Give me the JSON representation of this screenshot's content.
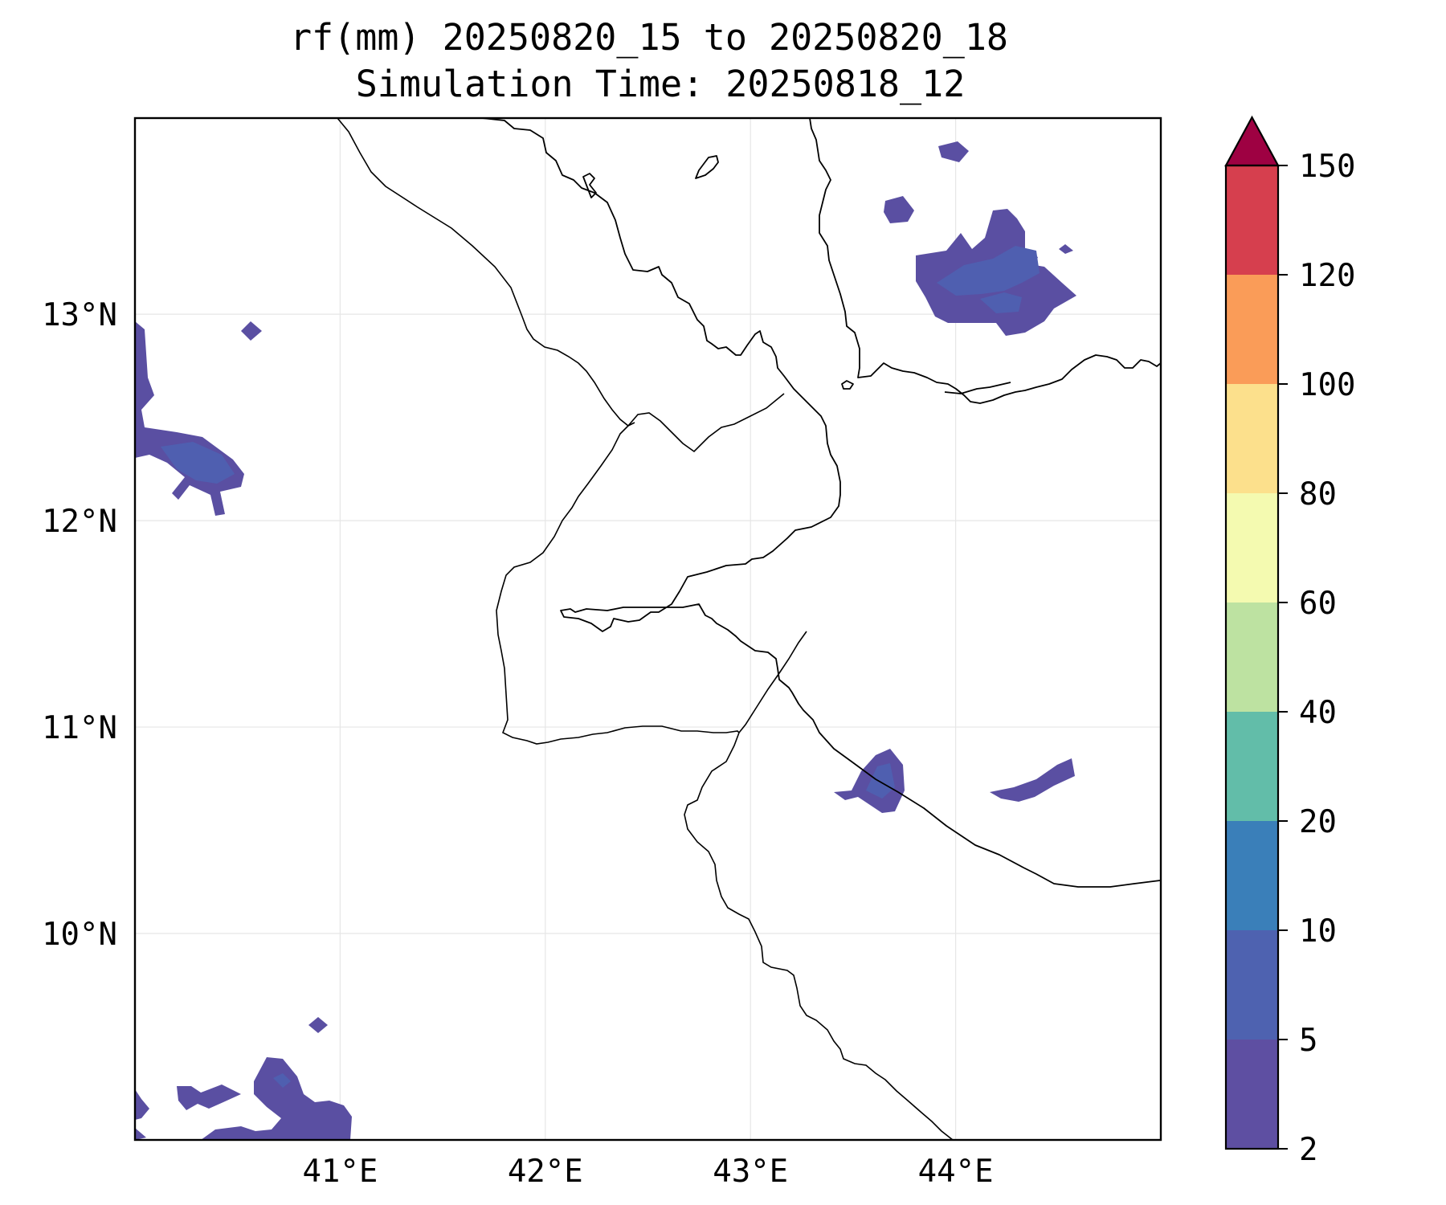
{
  "title": {
    "line1": "rf(mm) 20250820_15 to 20250820_18",
    "line2": "Simulation Time: 20250818_12"
  },
  "map": {
    "type": "filled-contour-map",
    "lon_range": [
      40.0,
      45.0
    ],
    "lat_range": [
      9.0,
      13.95
    ],
    "gridlines": true,
    "x_ticks": [
      {
        "value": 41,
        "label": "41°E"
      },
      {
        "value": 42,
        "label": "42°E"
      },
      {
        "value": 43,
        "label": "43°E"
      },
      {
        "value": 44,
        "label": "44°E"
      }
    ],
    "y_ticks": [
      {
        "value": 13,
        "label": "13°N"
      },
      {
        "value": 12,
        "label": "12°N"
      },
      {
        "value": 11,
        "label": "11°N"
      },
      {
        "value": 10,
        "label": "10°N"
      }
    ]
  },
  "colorbar": {
    "levels": [
      2,
      5,
      10,
      20,
      40,
      60,
      80,
      100,
      120,
      150
    ],
    "labels": [
      "2",
      "5",
      "10",
      "20",
      "40",
      "60",
      "80",
      "100",
      "120",
      "150"
    ],
    "colors": [
      "#5e4fa2",
      "#4e62b0",
      "#3a7fb9",
      "#62bda9",
      "#bde2a1",
      "#f4fab0",
      "#fce08c",
      "#fa9c58",
      "#d63f4e"
    ],
    "extend_color": "#9e0142",
    "extend": "max"
  }
}
